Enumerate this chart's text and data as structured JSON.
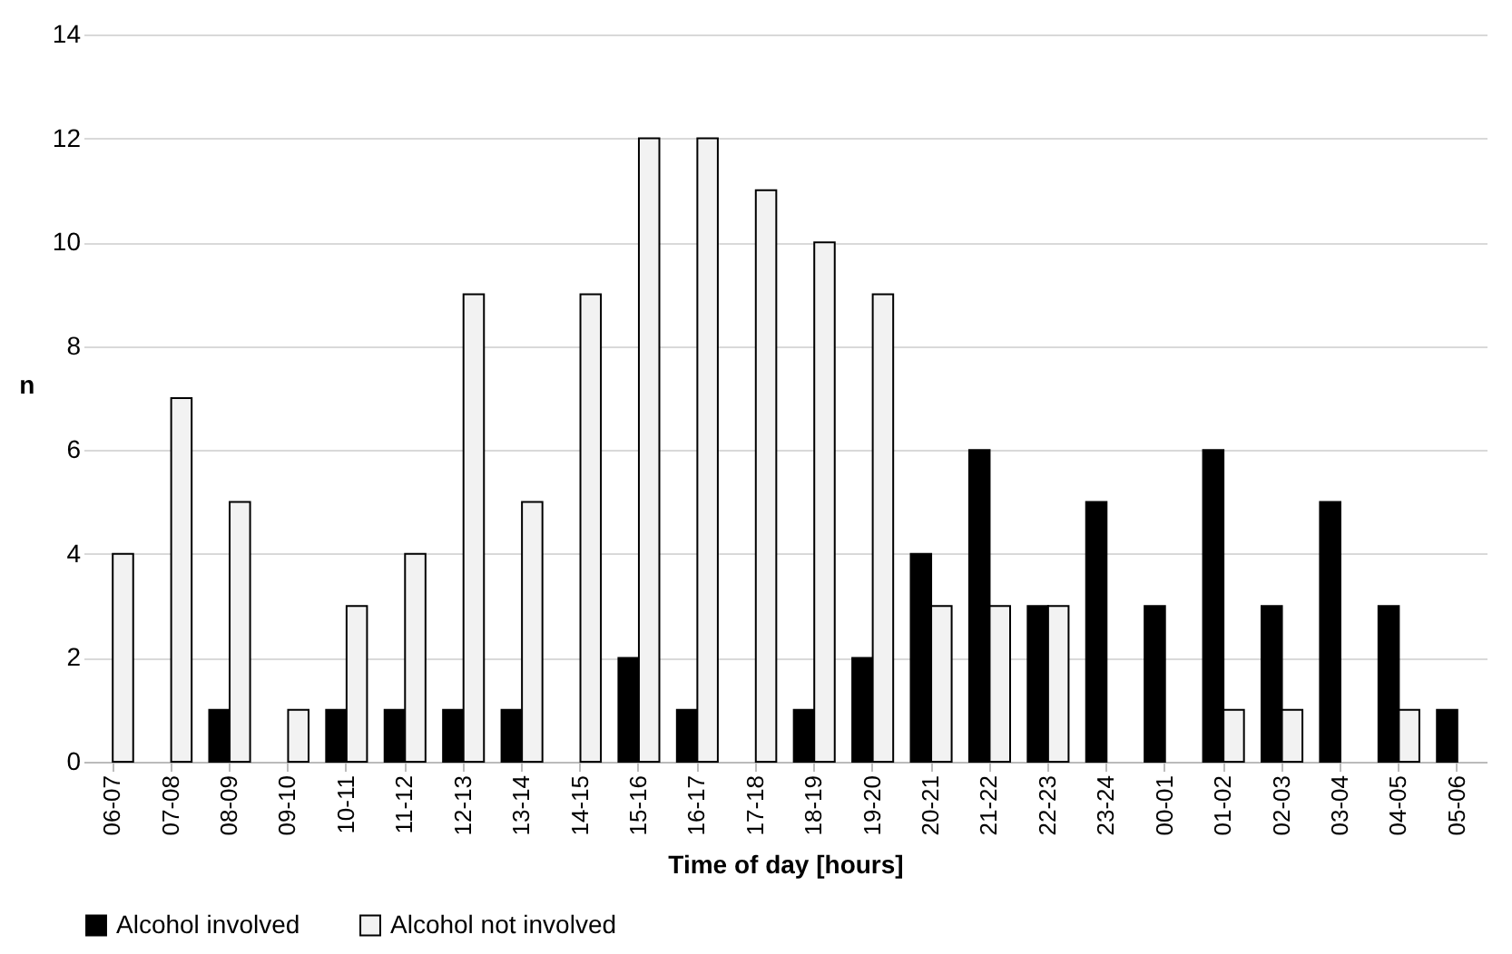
{
  "chart_data": {
    "type": "bar",
    "xlabel": "Time of day [hours]",
    "ylabel": "n",
    "categories": [
      "06-07",
      "07-08",
      "08-09",
      "09-10",
      "10-11",
      "11-12",
      "12-13",
      "13-14",
      "14-15",
      "15-16",
      "16-17",
      "17-18",
      "18-19",
      "19-20",
      "20-21",
      "21-22",
      "22-23",
      "23-24",
      "00-01",
      "01-02",
      "02-03",
      "03-04",
      "04-05",
      "05-06"
    ],
    "series": [
      {
        "name": "Alcohol involved",
        "color": "#000000",
        "values": [
          0,
          0,
          1,
          0,
          1,
          1,
          1,
          1,
          0,
          2,
          1,
          0,
          1,
          2,
          4,
          6,
          3,
          5,
          3,
          6,
          3,
          5,
          3,
          1
        ]
      },
      {
        "name": "Alcohol not involved",
        "color": "#f2f2f2",
        "values": [
          4,
          7,
          5,
          1,
          3,
          4,
          9,
          5,
          9,
          12,
          12,
          11,
          10,
          9,
          3,
          3,
          3,
          0,
          0,
          1,
          1,
          0,
          1,
          0
        ]
      }
    ],
    "ylim": [
      0,
      14
    ],
    "yticks": [
      0,
      2,
      4,
      6,
      8,
      10,
      12,
      14
    ],
    "grid": "y",
    "legend": "bottom"
  }
}
